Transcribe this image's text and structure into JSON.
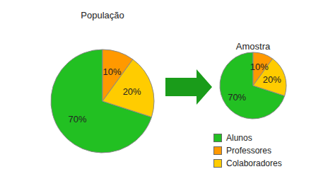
{
  "chart_data": [
    {
      "type": "pie",
      "title": "População",
      "categories": [
        "Alunos",
        "Professores",
        "Colaboradores"
      ],
      "values": [
        70,
        10,
        20
      ],
      "value_labels": [
        "70%",
        "10%",
        "20%"
      ],
      "colors": [
        "#22c022",
        "#ff9900",
        "#ffcc00"
      ],
      "data_labels": true
    },
    {
      "type": "pie",
      "title": "Amostra",
      "categories": [
        "Alunos",
        "Professores",
        "Colaboradores"
      ],
      "values": [
        70,
        10,
        20
      ],
      "value_labels": [
        "70%",
        "10%",
        "20%"
      ],
      "colors": [
        "#22c022",
        "#ff9900",
        "#ffcc00"
      ],
      "data_labels": true,
      "legend": "lower right"
    }
  ]
}
